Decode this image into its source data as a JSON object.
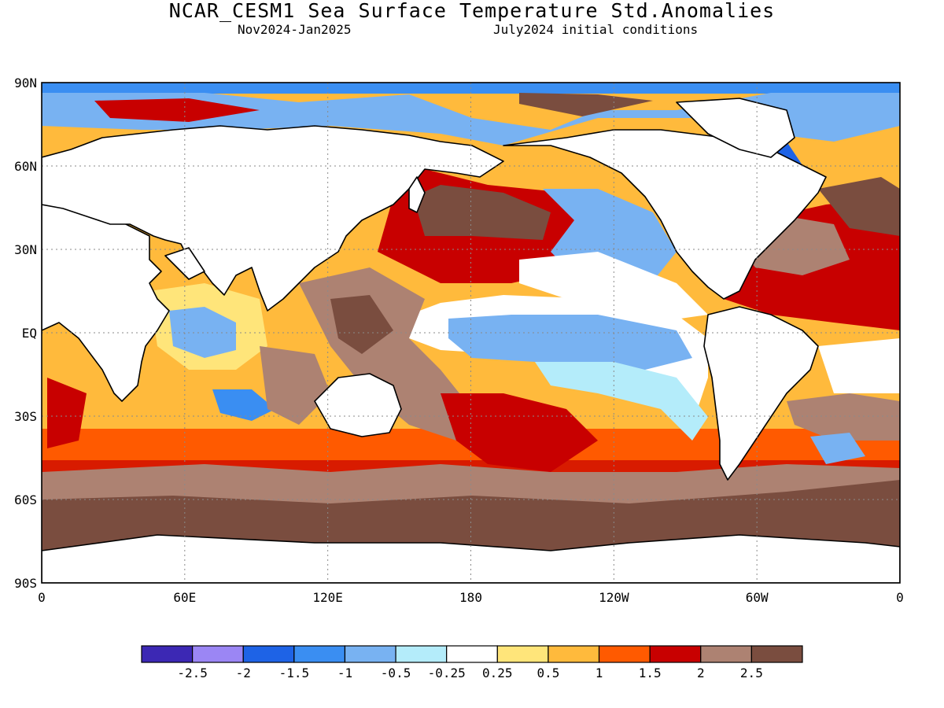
{
  "title": "NCAR_CESM1 Sea Surface Temperature Std.Anomalies",
  "subtitle_left": "Nov2024-Jan2025",
  "subtitle_right": "July2024 initial conditions",
  "map": {
    "lat_labels": [
      "90N",
      "60N",
      "30N",
      "EQ",
      "30S",
      "60S",
      "90S"
    ],
    "lon_labels": [
      "0",
      "60E",
      "120E",
      "180",
      "120W",
      "60W",
      "0"
    ],
    "grid": "dotted"
  },
  "colorbar": {
    "colors": [
      "#3c28b4",
      "#9b86f4",
      "#1e63e6",
      "#3a8ef2",
      "#78b2f2",
      "#b4ecfa",
      "#ffffff",
      "#ffe57a",
      "#ffba3c",
      "#ff5a00",
      "#c80000",
      "#ad8272",
      "#7a4d3f"
    ],
    "labels": [
      "-2.5",
      "-2",
      "-1.5",
      "-1",
      "-0.5",
      "-0.25",
      "0.25",
      "0.5",
      "1",
      "1.5",
      "2",
      "2.5"
    ]
  },
  "palette": {
    "land": "#ffffff",
    "ocean_base": "#ffba3c"
  }
}
